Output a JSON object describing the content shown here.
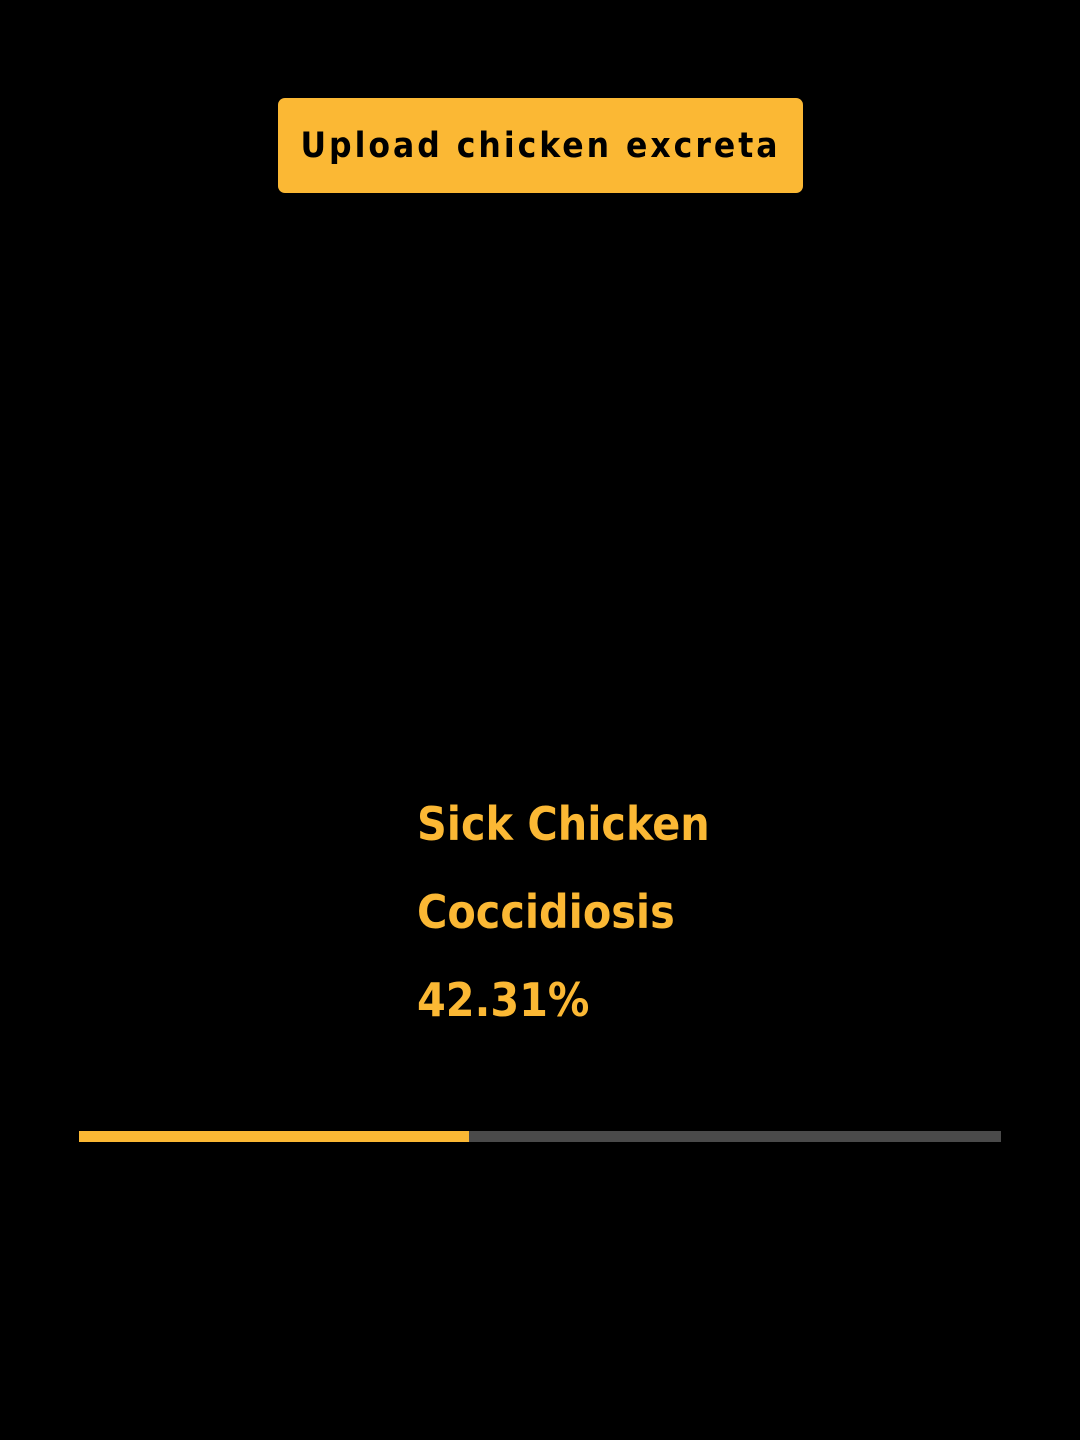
{
  "upload_button": {
    "label": "Upload chicken excreta"
  },
  "result": {
    "status": "Sick Chicken",
    "disease": "Coccidiosis",
    "confidence": "42.31%"
  },
  "progress": {
    "fraction": 0.4231
  },
  "colors": {
    "accent": "#fbb834",
    "background": "#000000",
    "track": "#4a4a4a"
  }
}
